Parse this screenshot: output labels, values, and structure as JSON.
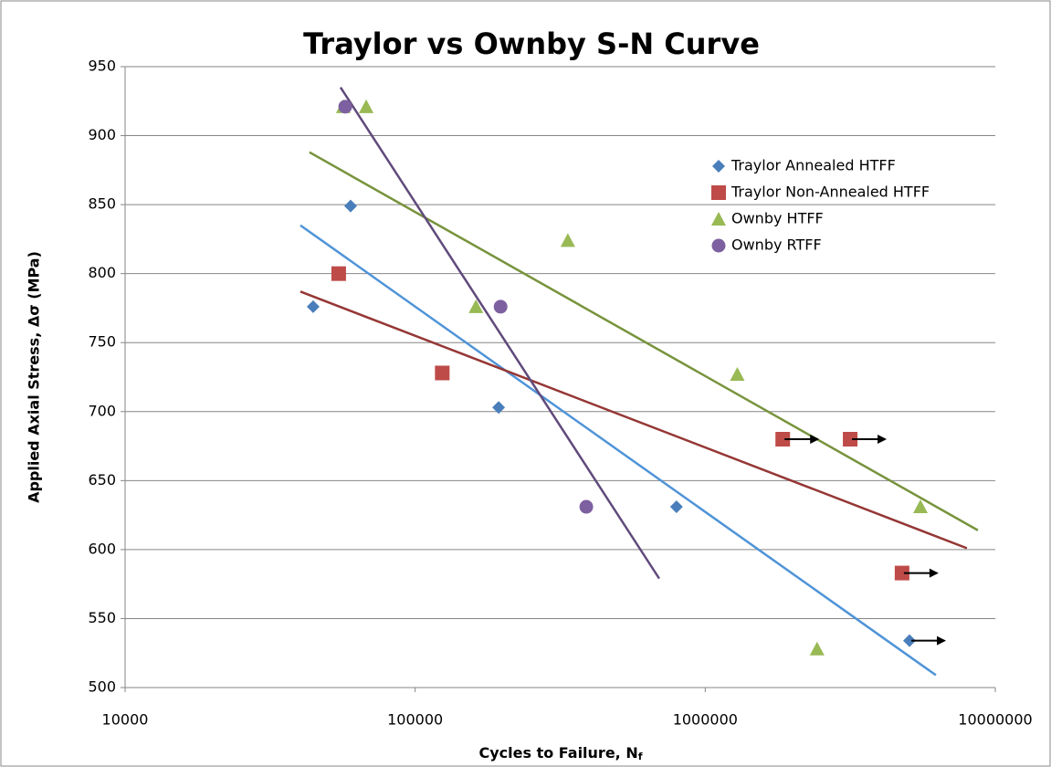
{
  "chart_data": {
    "type": "scatter",
    "title": "Traylor vs Ownby S-N Curve",
    "x_label": "Cycles to Failure, N",
    "x_label_subscript": "f",
    "y_label": "Applied Axial Stress, Δσ (MPa)",
    "xscale": "log",
    "xlim": [
      10000,
      10000000
    ],
    "xticks": [
      10000,
      100000,
      1000000,
      10000000
    ],
    "ylim": [
      500,
      950
    ],
    "yticks": [
      500,
      550,
      600,
      650,
      700,
      750,
      800,
      850,
      900,
      950
    ],
    "grid": true,
    "legend": "upper right",
    "series": [
      {
        "name": "Traylor Annealed HTFF",
        "color": "#4a7ebb",
        "marker": "diamond",
        "trend_color": "#4f94d8",
        "x": [
          44500,
          59900,
          194000,
          796000,
          5060000
        ],
        "values": [
          776,
          849,
          703,
          631,
          534
        ],
        "runout": [
          false,
          false,
          false,
          false,
          true
        ],
        "trendline": {
          "x": [
            40200,
            6240000
          ],
          "values": [
            835,
            509
          ]
        }
      },
      {
        "name": "Traylor Non-Annealed HTFF",
        "color": "#be4b48",
        "marker": "square",
        "trend_color": "#953735",
        "x": [
          54500,
          124000,
          1850000,
          3160000,
          4770000
        ],
        "values": [
          800,
          728,
          680,
          680,
          583
        ],
        "runout": [
          false,
          false,
          true,
          true,
          true
        ],
        "trendline": {
          "x": [
            40200,
            7980000
          ],
          "values": [
            787,
            601
          ]
        }
      },
      {
        "name": "Ownby HTFF",
        "color": "#98b954",
        "marker": "triangle",
        "trend_color": "#77933c",
        "x": [
          56500,
          67800,
          336000,
          162000,
          1290000,
          5520000,
          2430000
        ],
        "values": [
          921,
          921,
          824,
          776,
          727,
          631,
          528
        ],
        "runout": [
          false,
          false,
          false,
          false,
          false,
          false,
          false
        ],
        "trendline": {
          "x": [
            43200,
            8710000
          ],
          "values": [
            888,
            614
          ]
        }
      },
      {
        "name": "Ownby RTFF",
        "color": "#7d60a0",
        "marker": "circle",
        "trend_color": "#604a7b",
        "x": [
          57400,
          197000,
          389000
        ],
        "values": [
          921,
          776,
          631
        ],
        "runout": [
          false,
          false,
          false
        ],
        "trendline": {
          "x": [
            55300,
            694000
          ],
          "values": [
            935,
            579
          ]
        }
      }
    ]
  }
}
